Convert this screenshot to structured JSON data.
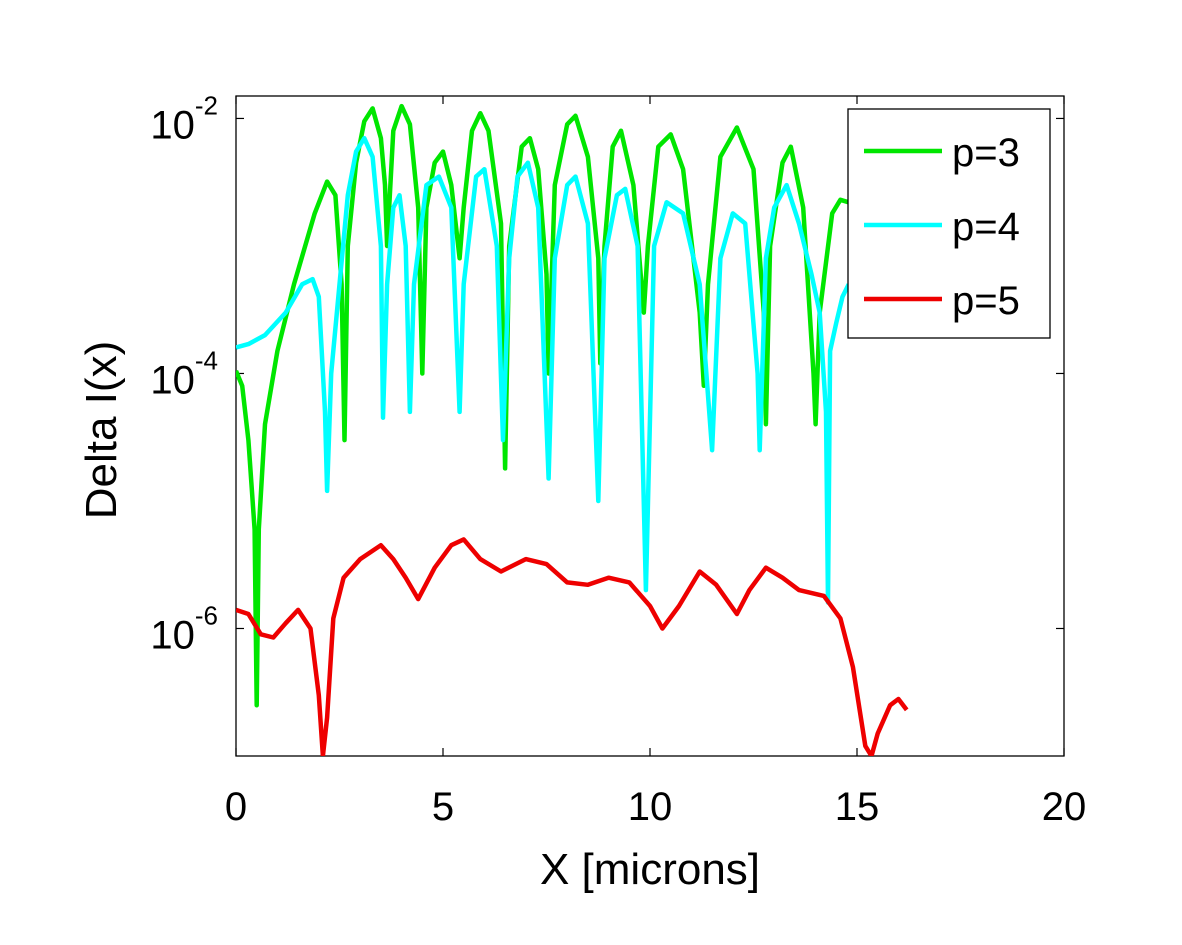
{
  "chart_data": {
    "type": "line",
    "title": "",
    "xlabel": "X [microns]",
    "ylabel": "Delta I(x)",
    "xlim": [
      0,
      20
    ],
    "ylim": [
      1e-07,
      0.015
    ],
    "yscale": "log",
    "grid": false,
    "legend_position": "top-right",
    "x_ticks": [
      {
        "value": 0,
        "label": "0"
      },
      {
        "value": 5,
        "label": "5"
      },
      {
        "value": 10,
        "label": "10"
      },
      {
        "value": 15,
        "label": "15"
      },
      {
        "value": 20,
        "label": "20"
      }
    ],
    "y_ticks": [
      {
        "value": 0.01,
        "base": "10",
        "exp": "-2"
      },
      {
        "value": 0.0001,
        "base": "10",
        "exp": "-4"
      },
      {
        "value": 1e-06,
        "base": "10",
        "exp": "-6"
      }
    ],
    "series": [
      {
        "name": "p=3",
        "color": "#00e600",
        "points": [
          [
            0.0,
            0.000105
          ],
          [
            0.15,
            8e-05
          ],
          [
            0.3,
            3e-05
          ],
          [
            0.45,
            6e-06
          ],
          [
            0.5,
            2.5e-07
          ],
          [
            0.55,
            6e-06
          ],
          [
            0.7,
            4e-05
          ],
          [
            1.0,
            0.00015
          ],
          [
            1.4,
            0.0005
          ],
          [
            1.9,
            0.0018
          ],
          [
            2.2,
            0.0032
          ],
          [
            2.4,
            0.0025
          ],
          [
            2.55,
            0.0005
          ],
          [
            2.62,
            3e-05
          ],
          [
            2.7,
            0.001
          ],
          [
            2.9,
            0.0045
          ],
          [
            3.1,
            0.0095
          ],
          [
            3.3,
            0.012
          ],
          [
            3.5,
            0.007
          ],
          [
            3.6,
            0.003
          ],
          [
            3.65,
            0.001
          ],
          [
            3.8,
            0.008
          ],
          [
            4.0,
            0.0125
          ],
          [
            4.2,
            0.009
          ],
          [
            4.4,
            0.002
          ],
          [
            4.5,
            0.0001
          ],
          [
            4.6,
            0.002
          ],
          [
            4.8,
            0.0045
          ],
          [
            5.0,
            0.0055
          ],
          [
            5.2,
            0.003
          ],
          [
            5.4,
            0.0008
          ],
          [
            5.5,
            0.002
          ],
          [
            5.7,
            0.008
          ],
          [
            5.9,
            0.011
          ],
          [
            6.1,
            0.008
          ],
          [
            6.4,
            0.0015
          ],
          [
            6.5,
            1.8e-05
          ],
          [
            6.6,
            0.001
          ],
          [
            6.9,
            0.006
          ],
          [
            7.1,
            0.007
          ],
          [
            7.3,
            0.004
          ],
          [
            7.5,
            0.0006
          ],
          [
            7.55,
            0.0001
          ],
          [
            7.7,
            0.003
          ],
          [
            8.0,
            0.009
          ],
          [
            8.2,
            0.0105
          ],
          [
            8.5,
            0.005
          ],
          [
            8.75,
            0.0008
          ],
          [
            8.8,
            0.00012
          ],
          [
            8.9,
            0.001
          ],
          [
            9.1,
            0.006
          ],
          [
            9.3,
            0.008
          ],
          [
            9.6,
            0.003
          ],
          [
            9.85,
            0.0003
          ],
          [
            9.95,
            0.001
          ],
          [
            10.2,
            0.006
          ],
          [
            10.5,
            0.0075
          ],
          [
            10.8,
            0.004
          ],
          [
            11.2,
            0.0003
          ],
          [
            11.3,
            8e-05
          ],
          [
            11.4,
            0.0005
          ],
          [
            11.7,
            0.005
          ],
          [
            12.1,
            0.0085
          ],
          [
            12.5,
            0.004
          ],
          [
            12.75,
            0.0003
          ],
          [
            12.8,
            4e-05
          ],
          [
            12.9,
            0.001
          ],
          [
            13.2,
            0.0045
          ],
          [
            13.4,
            0.006
          ],
          [
            13.7,
            0.002
          ],
          [
            13.95,
            0.0001
          ],
          [
            14.0,
            4e-05
          ],
          [
            14.1,
            0.0003
          ],
          [
            14.4,
            0.0018
          ],
          [
            14.6,
            0.0023
          ],
          [
            14.8,
            0.0022
          ]
        ]
      },
      {
        "name": "p=4",
        "color": "#00ffff",
        "points": [
          [
            0.0,
            0.00016
          ],
          [
            0.3,
            0.00017
          ],
          [
            0.7,
            0.0002
          ],
          [
            1.2,
            0.0003
          ],
          [
            1.6,
            0.0005
          ],
          [
            1.85,
            0.00055
          ],
          [
            2.0,
            0.0004
          ],
          [
            2.15,
            5e-05
          ],
          [
            2.2,
            1.2e-05
          ],
          [
            2.3,
            0.0001
          ],
          [
            2.5,
            0.0005
          ],
          [
            2.7,
            0.0025
          ],
          [
            2.9,
            0.0055
          ],
          [
            3.1,
            0.007
          ],
          [
            3.3,
            0.005
          ],
          [
            3.5,
            0.001
          ],
          [
            3.55,
            4.5e-05
          ],
          [
            3.65,
            0.0005
          ],
          [
            3.8,
            0.002
          ],
          [
            3.95,
            0.0025
          ],
          [
            4.1,
            0.001
          ],
          [
            4.2,
            5e-05
          ],
          [
            4.3,
            0.0005
          ],
          [
            4.6,
            0.003
          ],
          [
            4.9,
            0.0035
          ],
          [
            5.2,
            0.002
          ],
          [
            5.4,
            5e-05
          ],
          [
            5.5,
            0.0005
          ],
          [
            5.8,
            0.0035
          ],
          [
            6.0,
            0.004
          ],
          [
            6.3,
            0.001
          ],
          [
            6.45,
            3e-05
          ],
          [
            6.6,
            0.0008
          ],
          [
            6.8,
            0.0035
          ],
          [
            7.05,
            0.0045
          ],
          [
            7.3,
            0.002
          ],
          [
            7.55,
            1.5e-05
          ],
          [
            7.7,
            0.0008
          ],
          [
            8.0,
            0.003
          ],
          [
            8.2,
            0.0035
          ],
          [
            8.5,
            0.0015
          ],
          [
            8.75,
            1e-05
          ],
          [
            8.9,
            0.0008
          ],
          [
            9.2,
            0.0025
          ],
          [
            9.4,
            0.0028
          ],
          [
            9.7,
            0.001
          ],
          [
            9.9,
            2e-06
          ],
          [
            10.1,
            0.001
          ],
          [
            10.4,
            0.0022
          ],
          [
            10.8,
            0.0018
          ],
          [
            11.2,
            0.0005
          ],
          [
            11.5,
            2.5e-05
          ],
          [
            11.7,
            0.0008
          ],
          [
            12.0,
            0.0018
          ],
          [
            12.3,
            0.0015
          ],
          [
            12.6,
            0.0001
          ],
          [
            12.65,
            2.5e-05
          ],
          [
            12.8,
            0.0008
          ],
          [
            13.0,
            0.002
          ],
          [
            13.3,
            0.003
          ],
          [
            13.6,
            0.0015
          ],
          [
            13.9,
            0.0006
          ],
          [
            14.1,
            0.0003
          ],
          [
            14.25,
            5e-05
          ],
          [
            14.3,
            1.6e-06
          ],
          [
            14.35,
            0.00015
          ],
          [
            14.5,
            0.00025
          ],
          [
            14.65,
            0.0004
          ],
          [
            14.8,
            0.0005
          ]
        ]
      },
      {
        "name": "p=5",
        "color": "#ee0000",
        "points": [
          [
            0.0,
            1.4e-06
          ],
          [
            0.3,
            1.3e-06
          ],
          [
            0.6,
            9e-07
          ],
          [
            0.9,
            8.5e-07
          ],
          [
            1.2,
            1.1e-06
          ],
          [
            1.5,
            1.4e-06
          ],
          [
            1.8,
            1e-06
          ],
          [
            2.0,
            3e-07
          ],
          [
            2.1,
            1e-07
          ],
          [
            2.2,
            2e-07
          ],
          [
            2.35,
            1.2e-06
          ],
          [
            2.6,
            2.5e-06
          ],
          [
            3.0,
            3.5e-06
          ],
          [
            3.5,
            4.5e-06
          ],
          [
            3.8,
            3.5e-06
          ],
          [
            4.1,
            2.5e-06
          ],
          [
            4.4,
            1.7e-06
          ],
          [
            4.8,
            3e-06
          ],
          [
            5.2,
            4.5e-06
          ],
          [
            5.5,
            5e-06
          ],
          [
            5.9,
            3.5e-06
          ],
          [
            6.4,
            2.8e-06
          ],
          [
            7.0,
            3.5e-06
          ],
          [
            7.5,
            3.2e-06
          ],
          [
            8.0,
            2.3e-06
          ],
          [
            8.5,
            2.2e-06
          ],
          [
            9.0,
            2.5e-06
          ],
          [
            9.5,
            2.3e-06
          ],
          [
            10.0,
            1.5e-06
          ],
          [
            10.3,
            1e-06
          ],
          [
            10.7,
            1.5e-06
          ],
          [
            11.2,
            2.8e-06
          ],
          [
            11.6,
            2.2e-06
          ],
          [
            12.1,
            1.3e-06
          ],
          [
            12.4,
            2e-06
          ],
          [
            12.8,
            3e-06
          ],
          [
            13.2,
            2.5e-06
          ],
          [
            13.6,
            2e-06
          ],
          [
            14.2,
            1.8e-06
          ],
          [
            14.6,
            1.2e-06
          ],
          [
            14.9,
            5e-07
          ],
          [
            15.2,
            1.2e-07
          ],
          [
            15.35,
            1e-07
          ],
          [
            15.5,
            1.5e-07
          ],
          [
            15.8,
            2.5e-07
          ],
          [
            16.0,
            2.8e-07
          ],
          [
            16.2,
            2.3e-07
          ]
        ]
      }
    ]
  }
}
